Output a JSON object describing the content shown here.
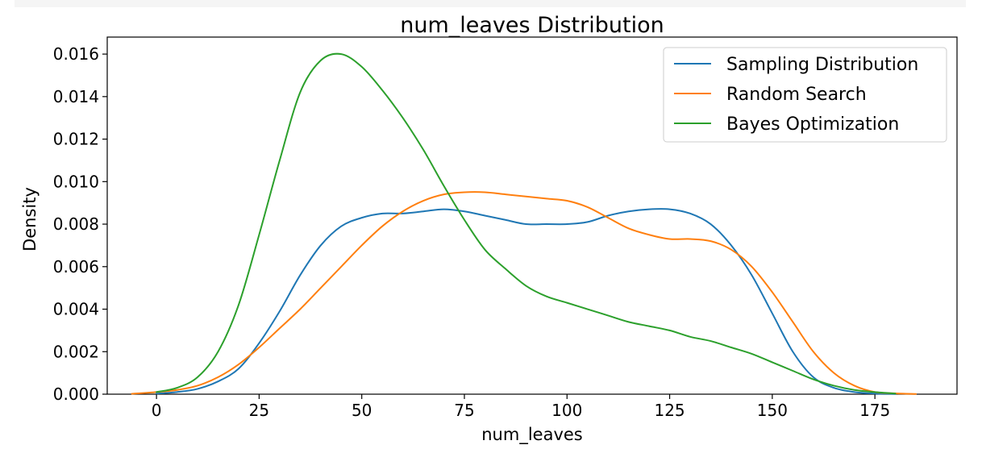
{
  "chart_data": {
    "type": "line",
    "title": "num_leaves Distribution",
    "xlabel": "num_leaves",
    "ylabel": "Density",
    "xlim": [
      -12,
      195
    ],
    "ylim": [
      0,
      0.0168
    ],
    "x_ticks": [
      0,
      25,
      50,
      75,
      100,
      125,
      150,
      175
    ],
    "x_tick_labels": [
      "0",
      "25",
      "50",
      "75",
      "100",
      "125",
      "150",
      "175"
    ],
    "y_ticks": [
      0,
      0.002,
      0.004,
      0.006,
      0.008,
      0.01,
      0.012,
      0.014,
      0.016
    ],
    "y_tick_labels": [
      "0.000",
      "0.002",
      "0.004",
      "0.006",
      "0.008",
      "0.010",
      "0.012",
      "0.014",
      "0.016"
    ],
    "grid": false,
    "legend_position": "top-right",
    "series": [
      {
        "name": "Sampling Distribution",
        "color": "#1f77b4",
        "x": [
          0,
          5,
          10,
          15,
          20,
          25,
          30,
          35,
          40,
          45,
          50,
          55,
          60,
          65,
          70,
          75,
          80,
          85,
          90,
          95,
          100,
          105,
          110,
          115,
          120,
          125,
          130,
          135,
          140,
          145,
          150,
          155,
          160,
          165,
          170,
          175,
          180
        ],
        "y": [
          3e-05,
          0.0001,
          0.00025,
          0.0006,
          0.0012,
          0.0024,
          0.0039,
          0.0056,
          0.007,
          0.0079,
          0.0083,
          0.0085,
          0.0085,
          0.0086,
          0.0087,
          0.0086,
          0.0084,
          0.0082,
          0.008,
          0.008,
          0.008,
          0.0081,
          0.0084,
          0.0086,
          0.0087,
          0.0087,
          0.0085,
          0.008,
          0.007,
          0.0056,
          0.0038,
          0.002,
          0.0008,
          0.0003,
          0.0001,
          3e-05,
          1e-05
        ]
      },
      {
        "name": "Random Search",
        "color": "#ff7f0e",
        "x": [
          -6,
          0,
          5,
          10,
          15,
          20,
          25,
          30,
          35,
          40,
          45,
          50,
          55,
          60,
          65,
          70,
          75,
          80,
          85,
          90,
          95,
          100,
          105,
          110,
          115,
          120,
          125,
          130,
          135,
          140,
          145,
          150,
          155,
          160,
          165,
          170,
          175,
          180,
          185
        ],
        "y": [
          2e-05,
          0.0001,
          0.0002,
          0.0004,
          0.0008,
          0.0014,
          0.0022,
          0.0031,
          0.004,
          0.005,
          0.006,
          0.007,
          0.0079,
          0.0086,
          0.0091,
          0.0094,
          0.0095,
          0.0095,
          0.0094,
          0.0093,
          0.0092,
          0.0091,
          0.0088,
          0.0083,
          0.0078,
          0.0075,
          0.0073,
          0.0073,
          0.0072,
          0.0068,
          0.006,
          0.0048,
          0.0034,
          0.002,
          0.001,
          0.0004,
          0.0001,
          4e-05,
          1e-05
        ]
      },
      {
        "name": "Bayes Optimization",
        "color": "#2ca02c",
        "x": [
          0,
          5,
          10,
          15,
          20,
          25,
          30,
          35,
          40,
          45,
          50,
          55,
          60,
          65,
          70,
          75,
          80,
          85,
          90,
          95,
          100,
          105,
          110,
          115,
          120,
          125,
          130,
          135,
          140,
          145,
          150,
          155,
          160,
          165,
          170,
          175,
          180
        ],
        "y": [
          0.0001,
          0.0003,
          0.0008,
          0.002,
          0.0042,
          0.0075,
          0.011,
          0.0142,
          0.0157,
          0.016,
          0.0154,
          0.0143,
          0.013,
          0.0115,
          0.0098,
          0.0082,
          0.0068,
          0.0059,
          0.0051,
          0.0046,
          0.0043,
          0.004,
          0.0037,
          0.0034,
          0.0032,
          0.003,
          0.0027,
          0.0025,
          0.0022,
          0.0019,
          0.0015,
          0.0011,
          0.0007,
          0.0004,
          0.0002,
          0.0001,
          3e-05
        ]
      }
    ]
  }
}
